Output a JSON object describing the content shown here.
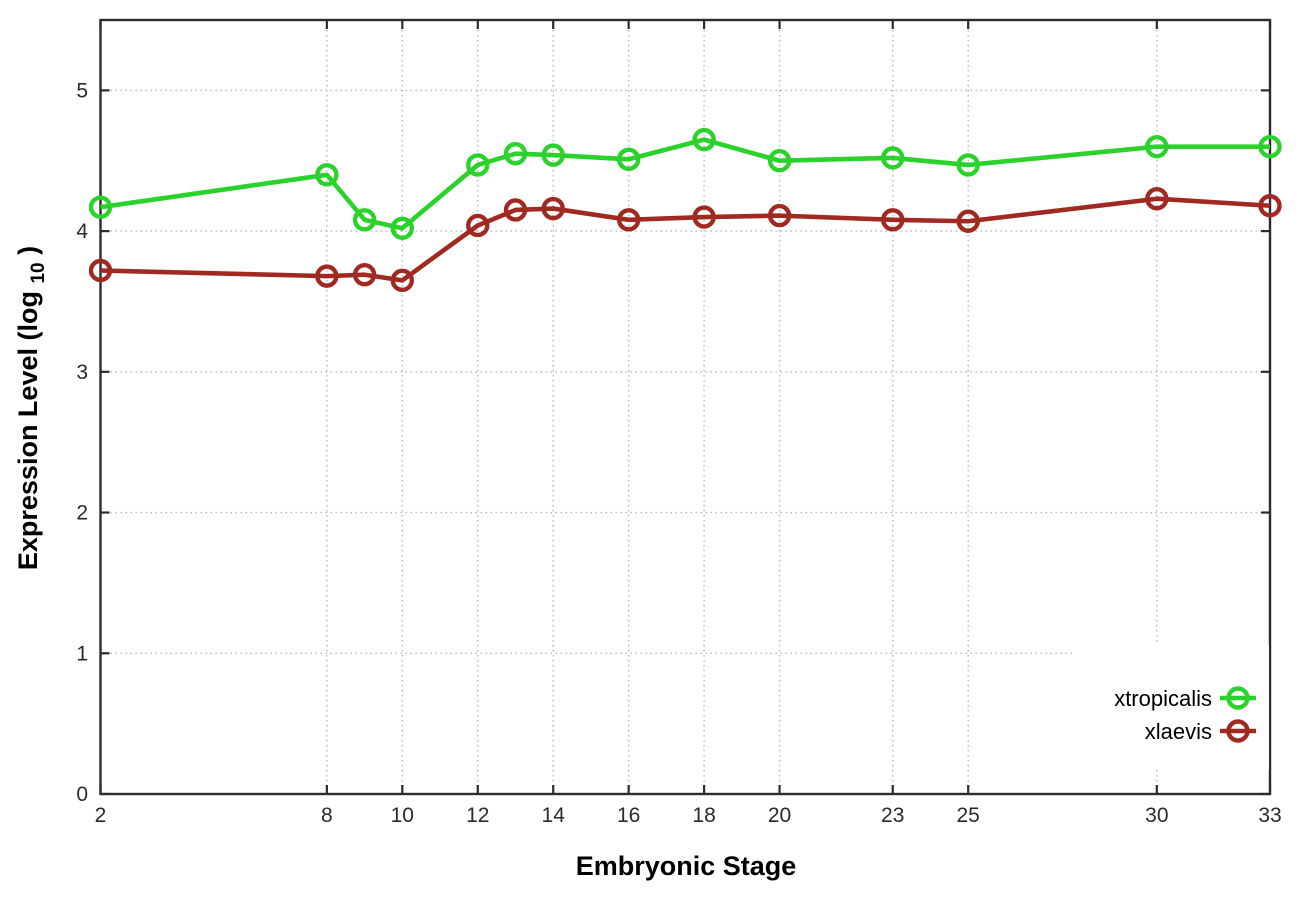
{
  "chart_data": {
    "type": "line",
    "title": "",
    "xlabel": "Embryonic Stage",
    "ylabel_prefix": "Expression Level (log",
    "ylabel_sub": "10",
    "ylabel_suffix": ")",
    "x": [
      2,
      8,
      9,
      10,
      12,
      13,
      14,
      16,
      18,
      20,
      23,
      25,
      30,
      33
    ],
    "x_tick_labels": [
      "2",
      "8",
      "10",
      "12",
      "14",
      "16",
      "18",
      "20",
      "23",
      "25",
      "30",
      "33"
    ],
    "y_tick_labels": [
      "0",
      "1",
      "2",
      "3",
      "4",
      "5"
    ],
    "xlim": [
      2,
      33
    ],
    "ylim": [
      0,
      5.5
    ],
    "grid": true,
    "legend_position": "bottom-right",
    "series": [
      {
        "name": "xtropicalis",
        "color": "#2bd22b",
        "marker": "open-circle",
        "values": [
          4.17,
          4.4,
          4.08,
          4.02,
          4.47,
          4.55,
          4.54,
          4.51,
          4.65,
          4.5,
          4.52,
          4.47,
          4.6,
          4.6
        ]
      },
      {
        "name": "xlaevis",
        "color": "#a02a22",
        "marker": "open-circle",
        "values": [
          3.72,
          3.68,
          3.69,
          3.65,
          4.04,
          4.15,
          4.16,
          4.08,
          4.1,
          4.11,
          4.08,
          4.07,
          4.23,
          4.18
        ]
      }
    ]
  },
  "colors": {
    "background": "#ffffff",
    "grid": "#b8b8b8",
    "axis": "#2b2b2b",
    "text": "#1a1a1a"
  }
}
